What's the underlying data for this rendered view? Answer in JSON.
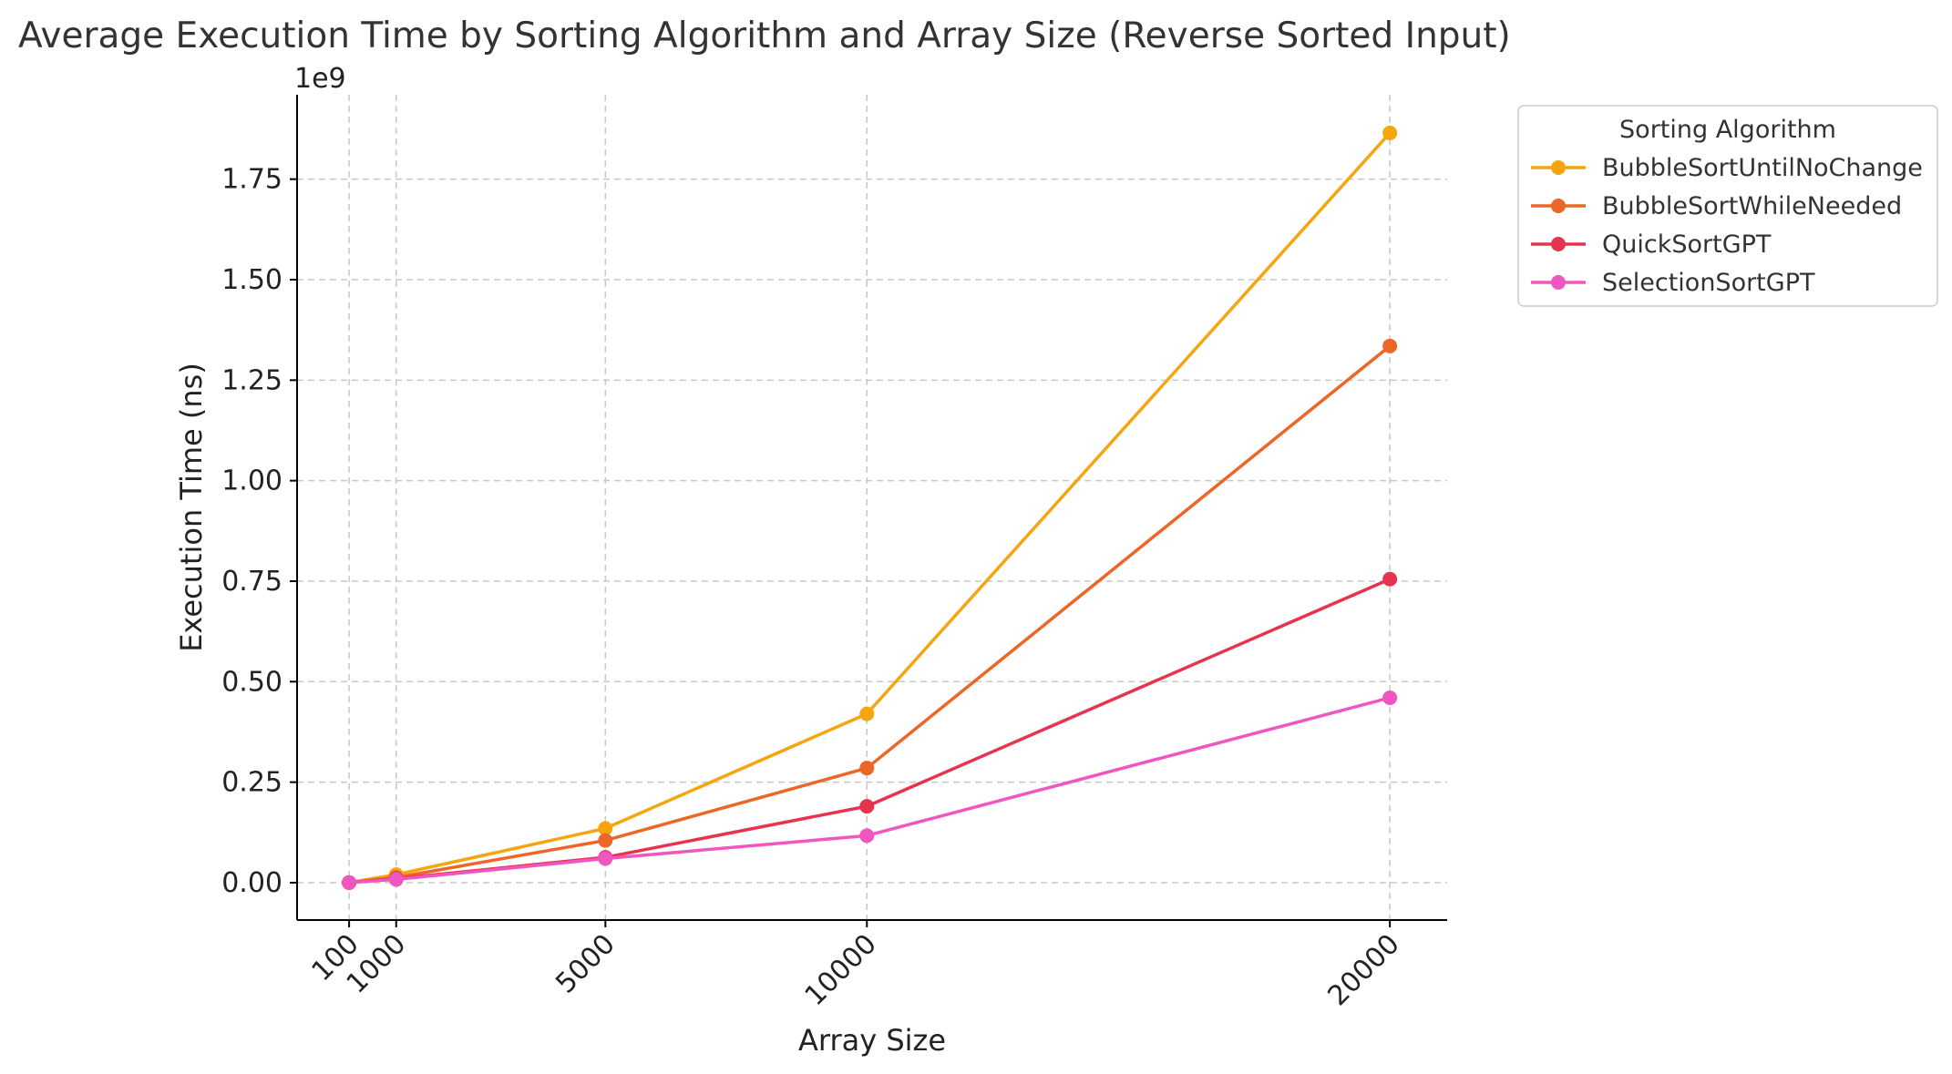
{
  "chart_data": {
    "type": "line",
    "title": "Average Execution Time by Sorting Algorithm and Array Size (Reverse Sorted Input)",
    "xlabel": "Array Size",
    "ylabel": "Execution Time (ns)",
    "y_offset_label": "1e9",
    "x": [
      100,
      1000,
      5000,
      10000,
      20000
    ],
    "x_tick_labels": [
      "100",
      "1000",
      "5000",
      "10000",
      "20000"
    ],
    "y_ticks": [
      0.0,
      0.25,
      0.5,
      0.75,
      1.0,
      1.25,
      1.5,
      1.75
    ],
    "y_tick_labels": [
      "0.00",
      "0.25",
      "0.50",
      "0.75",
      "1.00",
      "1.25",
      "1.50",
      "1.75"
    ],
    "ylim": [
      -0.093,
      1.96
    ],
    "xlim": [
      -895,
      21095
    ],
    "grid": true,
    "legend": {
      "title": "Sorting Algorithm",
      "placement": "outside-right"
    },
    "series": [
      {
        "name": "BubbleSortUntilNoChange",
        "color": "#f5a50f",
        "values": [
          0.0003,
          0.02,
          0.135,
          0.42,
          1.865
        ]
      },
      {
        "name": "BubbleSortWhileNeeded",
        "color": "#ec6727",
        "values": [
          0.0002,
          0.013,
          0.105,
          0.285,
          1.335
        ]
      },
      {
        "name": "QuickSortGPT",
        "color": "#e8334f",
        "values": [
          0.0001,
          0.01,
          0.063,
          0.19,
          0.755
        ]
      },
      {
        "name": "SelectionSortGPT",
        "color": "#f056c0",
        "values": [
          0.0001,
          0.008,
          0.06,
          0.117,
          0.46
        ]
      }
    ]
  }
}
